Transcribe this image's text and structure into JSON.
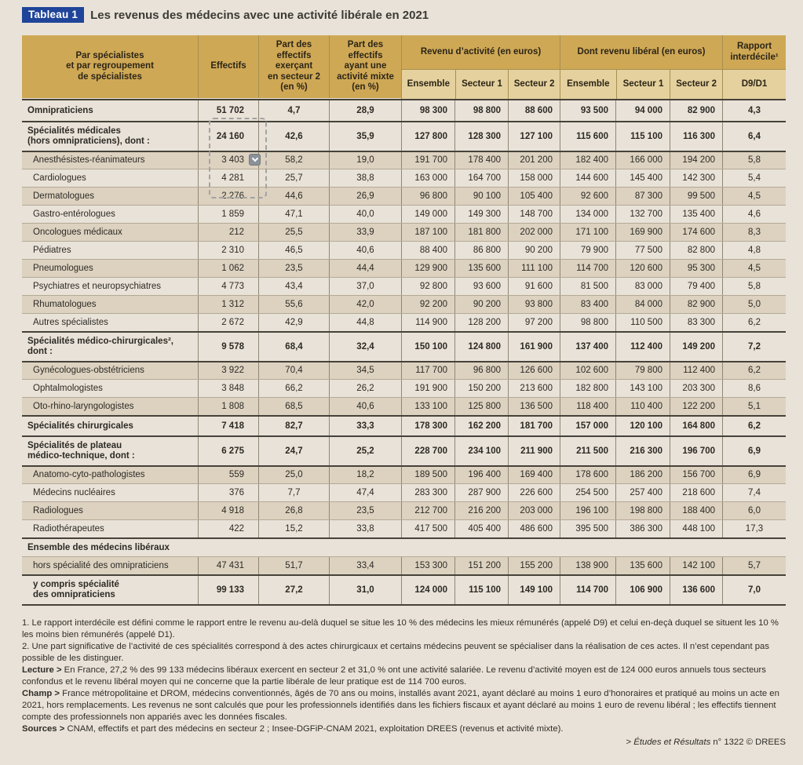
{
  "colors": {
    "page_background": "#e9e2d8",
    "header_gold": "#cfa855",
    "subheader_gold": "#e5d19e",
    "row_shade": "#ddd2c0",
    "badge_blue": "#1f4499",
    "dark_rule": "#45423a"
  },
  "title": {
    "badge": "Tableau 1",
    "text": "Les revenus des médecins avec une activité libérale en 2021"
  },
  "selection": {
    "dropdown_icon": "chevron-down"
  },
  "table": {
    "header": {
      "specialistes": "Par spécialistes\net par regroupement\nde spécialistes",
      "effectifs": "Effectifs",
      "part_secteur2": "Part des\neffectifs\nexerçant\nen secteur 2\n(en %)",
      "part_mixte": "Part des\neffectifs\nayant une\nactivité mixte\n(en %)",
      "revenu_activite": "Revenu d’activité (en euros)",
      "dont_liberal": "Dont revenu libéral (en euros)",
      "rapport": "Rapport\ninterdécile¹",
      "sub": {
        "ensemble": "Ensemble",
        "secteur1": "Secteur 1",
        "secteur2": "Secteur 2"
      },
      "d9d1": "D9/D1"
    },
    "rows": [
      {
        "label": "Omnipraticiens",
        "kind": "section",
        "shaded": false,
        "top": "none",
        "values": [
          "51 702",
          "4,7",
          "28,9",
          "98 300",
          "98 800",
          "88 600",
          "93 500",
          "94 000",
          "82 900",
          "4,3"
        ]
      },
      {
        "label": "Spécialités médicales\n(hors omnipraticiens), dont :",
        "kind": "section",
        "shaded": false,
        "top": "dark",
        "values": [
          "24 160",
          "42,6",
          "35,9",
          "127 800",
          "128 300",
          "127 100",
          "115 600",
          "115 100",
          "116 300",
          "6,4"
        ]
      },
      {
        "label": "Anesthésistes-réanimateurs",
        "kind": "sub",
        "shaded": true,
        "top": "dark",
        "values": [
          "3 403",
          "58,2",
          "19,0",
          "191 700",
          "178 400",
          "201 200",
          "182 400",
          "166 000",
          "194 200",
          "5,8"
        ]
      },
      {
        "label": "Cardiologues",
        "kind": "sub",
        "shaded": false,
        "top": "thin",
        "values": [
          "4 281",
          "25,7",
          "38,8",
          "163 000",
          "164 700",
          "158 000",
          "144 600",
          "145 400",
          "142 300",
          "5,4"
        ]
      },
      {
        "label": "Dermatologues",
        "kind": "sub",
        "shaded": true,
        "top": "thin",
        "values": [
          "2 276",
          "44,6",
          "26,9",
          "96 800",
          "90 100",
          "105 400",
          "92 600",
          "87 300",
          "99 500",
          "4,5"
        ]
      },
      {
        "label": "Gastro-entérologues",
        "kind": "sub",
        "shaded": false,
        "top": "thin",
        "values": [
          "1 859",
          "47,1",
          "40,0",
          "149 000",
          "149 300",
          "148 700",
          "134 000",
          "132 700",
          "135 400",
          "4,6"
        ]
      },
      {
        "label": "Oncologues médicaux",
        "kind": "sub",
        "shaded": true,
        "top": "thin",
        "values": [
          "212",
          "25,5",
          "33,9",
          "187 100",
          "181 800",
          "202 000",
          "171 100",
          "169 900",
          "174 600",
          "8,3"
        ]
      },
      {
        "label": "Pédiatres",
        "kind": "sub",
        "shaded": false,
        "top": "thin",
        "values": [
          "2 310",
          "46,5",
          "40,6",
          "88 400",
          "86 800",
          "90 200",
          "79 900",
          "77 500",
          "82 800",
          "4,8"
        ]
      },
      {
        "label": "Pneumologues",
        "kind": "sub",
        "shaded": true,
        "top": "thin",
        "values": [
          "1 062",
          "23,5",
          "44,4",
          "129 900",
          "135 600",
          "111 100",
          "114 700",
          "120 600",
          "95 300",
          "4,5"
        ]
      },
      {
        "label": "Psychiatres et neuropsychiatres",
        "kind": "sub",
        "shaded": false,
        "top": "thin",
        "values": [
          "4 773",
          "43,4",
          "37,0",
          "92 800",
          "93 600",
          "91 600",
          "81 500",
          "83 000",
          "79 400",
          "5,8"
        ]
      },
      {
        "label": "Rhumatologues",
        "kind": "sub",
        "shaded": true,
        "top": "thin",
        "values": [
          "1 312",
          "55,6",
          "42,0",
          "92 200",
          "90 200",
          "93 800",
          "83 400",
          "84 000",
          "82 900",
          "5,0"
        ]
      },
      {
        "label": "Autres spécialistes",
        "kind": "sub",
        "shaded": false,
        "top": "thin",
        "values": [
          "2 672",
          "42,9",
          "44,8",
          "114 900",
          "128 200",
          "97 200",
          "98 800",
          "110 500",
          "83 300",
          "6,2"
        ]
      },
      {
        "label": "Spécialités médico-chirurgicales²,\ndont :",
        "kind": "section",
        "shaded": false,
        "top": "dark",
        "values": [
          "9 578",
          "68,4",
          "32,4",
          "150 100",
          "124 800",
          "161 900",
          "137 400",
          "112 400",
          "149 200",
          "7,2"
        ]
      },
      {
        "label": "Gynécologues-obstétriciens",
        "kind": "sub",
        "shaded": true,
        "top": "dark",
        "values": [
          "3 922",
          "70,4",
          "34,5",
          "117 700",
          "96 800",
          "126 600",
          "102 600",
          "79 800",
          "112 400",
          "6,2"
        ]
      },
      {
        "label": "Ophtalmologistes",
        "kind": "sub",
        "shaded": false,
        "top": "thin",
        "values": [
          "3 848",
          "66,2",
          "26,2",
          "191 900",
          "150 200",
          "213 600",
          "182 800",
          "143 100",
          "203 300",
          "8,6"
        ]
      },
      {
        "label": "Oto-rhino-laryngologistes",
        "kind": "sub",
        "shaded": true,
        "top": "thin",
        "values": [
          "1 808",
          "68,5",
          "40,6",
          "133 100",
          "125 800",
          "136 500",
          "118 400",
          "110 400",
          "122 200",
          "5,1"
        ]
      },
      {
        "label": "Spécialités chirurgicales",
        "kind": "section",
        "shaded": false,
        "top": "dark",
        "values": [
          "7 418",
          "82,7",
          "33,3",
          "178 300",
          "162 200",
          "181 700",
          "157 000",
          "120 100",
          "164 800",
          "6,2"
        ]
      },
      {
        "label": "Spécialités de plateau\nmédico-technique, dont :",
        "kind": "section",
        "shaded": false,
        "top": "dark",
        "values": [
          "6 275",
          "24,7",
          "25,2",
          "228 700",
          "234 100",
          "211 900",
          "211 500",
          "216 300",
          "196 700",
          "6,9"
        ]
      },
      {
        "label": "Anatomo-cyto-pathologistes",
        "kind": "sub",
        "shaded": true,
        "top": "dark",
        "values": [
          "559",
          "25,0",
          "18,2",
          "189 500",
          "196 400",
          "169 400",
          "178 600",
          "186 200",
          "156 700",
          "6,9"
        ]
      },
      {
        "label": "Médecins nucléaires",
        "kind": "sub",
        "shaded": false,
        "top": "thin",
        "values": [
          "376",
          "7,7",
          "47,4",
          "283 300",
          "287 900",
          "226 600",
          "254 500",
          "257 400",
          "218 600",
          "7,4"
        ]
      },
      {
        "label": "Radiologues",
        "kind": "sub",
        "shaded": true,
        "top": "thin",
        "values": [
          "4 918",
          "26,8",
          "23,5",
          "212 700",
          "216 200",
          "203 000",
          "196 100",
          "198 800",
          "188 400",
          "6,0"
        ]
      },
      {
        "label": "Radiothérapeutes",
        "kind": "sub",
        "shaded": false,
        "top": "thin",
        "values": [
          "422",
          "15,2",
          "33,8",
          "417 500",
          "405 400",
          "486 600",
          "395 500",
          "386 300",
          "448 100",
          "17,3"
        ]
      },
      {
        "label": "Ensemble des médecins libéraux",
        "kind": "band",
        "shaded": false,
        "top": "dark",
        "values": []
      },
      {
        "label": "hors spécialité des omnipraticiens",
        "kind": "sub",
        "shaded": true,
        "top": "thin",
        "values": [
          "47 431",
          "51,7",
          "33,4",
          "153 300",
          "151 200",
          "155 200",
          "138 900",
          "135 600",
          "142 100",
          "5,7"
        ]
      },
      {
        "label": "y compris spécialité\ndes omnipraticiens",
        "kind": "total",
        "shaded": false,
        "top": "dark",
        "values": [
          "99 133",
          "27,2",
          "31,0",
          "124 000",
          "115 100",
          "149 100",
          "114 700",
          "106 900",
          "136 600",
          "7,0"
        ]
      }
    ]
  },
  "footnotes": [
    {
      "lead": "",
      "text": "1. Le rapport interdécile est défini comme le rapport entre le revenu au-delà duquel se situe les 10 % des médecins les mieux rémunérés (appelé D9) et celui en-deçà duquel se situent les 10 % les moins bien rémunérés (appelé D1)."
    },
    {
      "lead": "",
      "text": "2. Une part significative de l’activité de ces spécialités correspond à des actes chirurgicaux et certains médecins peuvent se spécialiser dans la réalisation de ces actes. Il n’est cependant pas possible de les distinguer."
    },
    {
      "lead": "Lecture >",
      "text": " En France, 27,2 % des 99 133 médecins libéraux exercent en secteur 2 et 31,0 % ont une activité salariée. Le revenu d’activité moyen est de 124 000 euros annuels tous secteurs confondus et le revenu libéral moyen qui ne concerne que la partie libérale de leur pratique est de 114 700 euros."
    },
    {
      "lead": "Champ >",
      "text": " France métropolitaine et DROM, médecins conventionnés, âgés de 70 ans ou moins, installés avant 2021, ayant déclaré au moins 1 euro d’honoraires et pratiqué au moins un acte en 2021, hors remplacements. Les revenus ne sont calculés que pour les professionnels identifiés dans les fichiers fiscaux et ayant déclaré au moins 1 euro de revenu libéral ; les effectifs tiennent compte des professionnels non appariés avec les données fiscales."
    },
    {
      "lead": "Sources >",
      "text": " CNAM, effectifs et part des médecins en secteur 2 ; Insee-DGFiP-CNAM 2021, exploitation DREES (revenus et activité mixte)."
    }
  ],
  "credit": {
    "prefix": "> ",
    "italic": "Études et Résultats",
    "rest": " n° 1322 © DREES"
  }
}
